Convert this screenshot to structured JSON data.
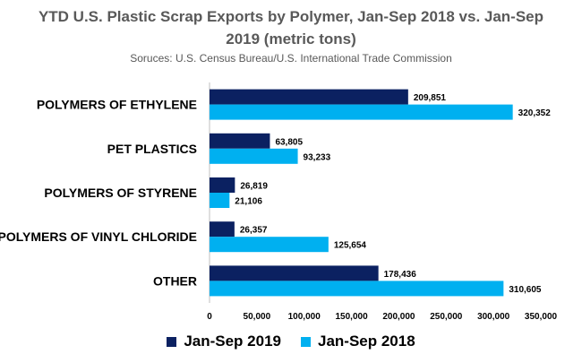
{
  "chart_data": {
    "type": "bar",
    "orientation": "horizontal",
    "title": "YTD U.S. Plastic Scrap Exports by Polymer, Jan-Sep 2018 vs. Jan-Sep 2019 (metric tons)",
    "subtitle": "Soruces: U.S. Census Bureau/U.S. International Trade Commission",
    "categories": [
      "POLYMERS OF ETHYLENE",
      "PET PLASTICS",
      "POLYMERS OF STYRENE",
      "POLYMERS OF VINYL CHLORIDE",
      "OTHER"
    ],
    "series": [
      {
        "name": "Jan-Sep 2019",
        "color": "#0b2161",
        "values": [
          209851,
          63805,
          26819,
          26357,
          178436
        ],
        "labels": [
          "209,851",
          "63,805",
          "26,819",
          "26,357",
          "178,436"
        ]
      },
      {
        "name": "Jan-Sep 2018",
        "color": "#00b0f0",
        "values": [
          320352,
          93233,
          21106,
          125654,
          310605
        ],
        "labels": [
          "320,352",
          "93,233",
          "21,106",
          "125,654",
          "310,605"
        ]
      }
    ],
    "xlim": [
      0,
      350000
    ],
    "xticks": [
      "0",
      "50,000",
      "100,000",
      "150,000",
      "200,000",
      "250,000",
      "300,000",
      "350,000"
    ],
    "grid": false,
    "legend_position": "bottom"
  }
}
